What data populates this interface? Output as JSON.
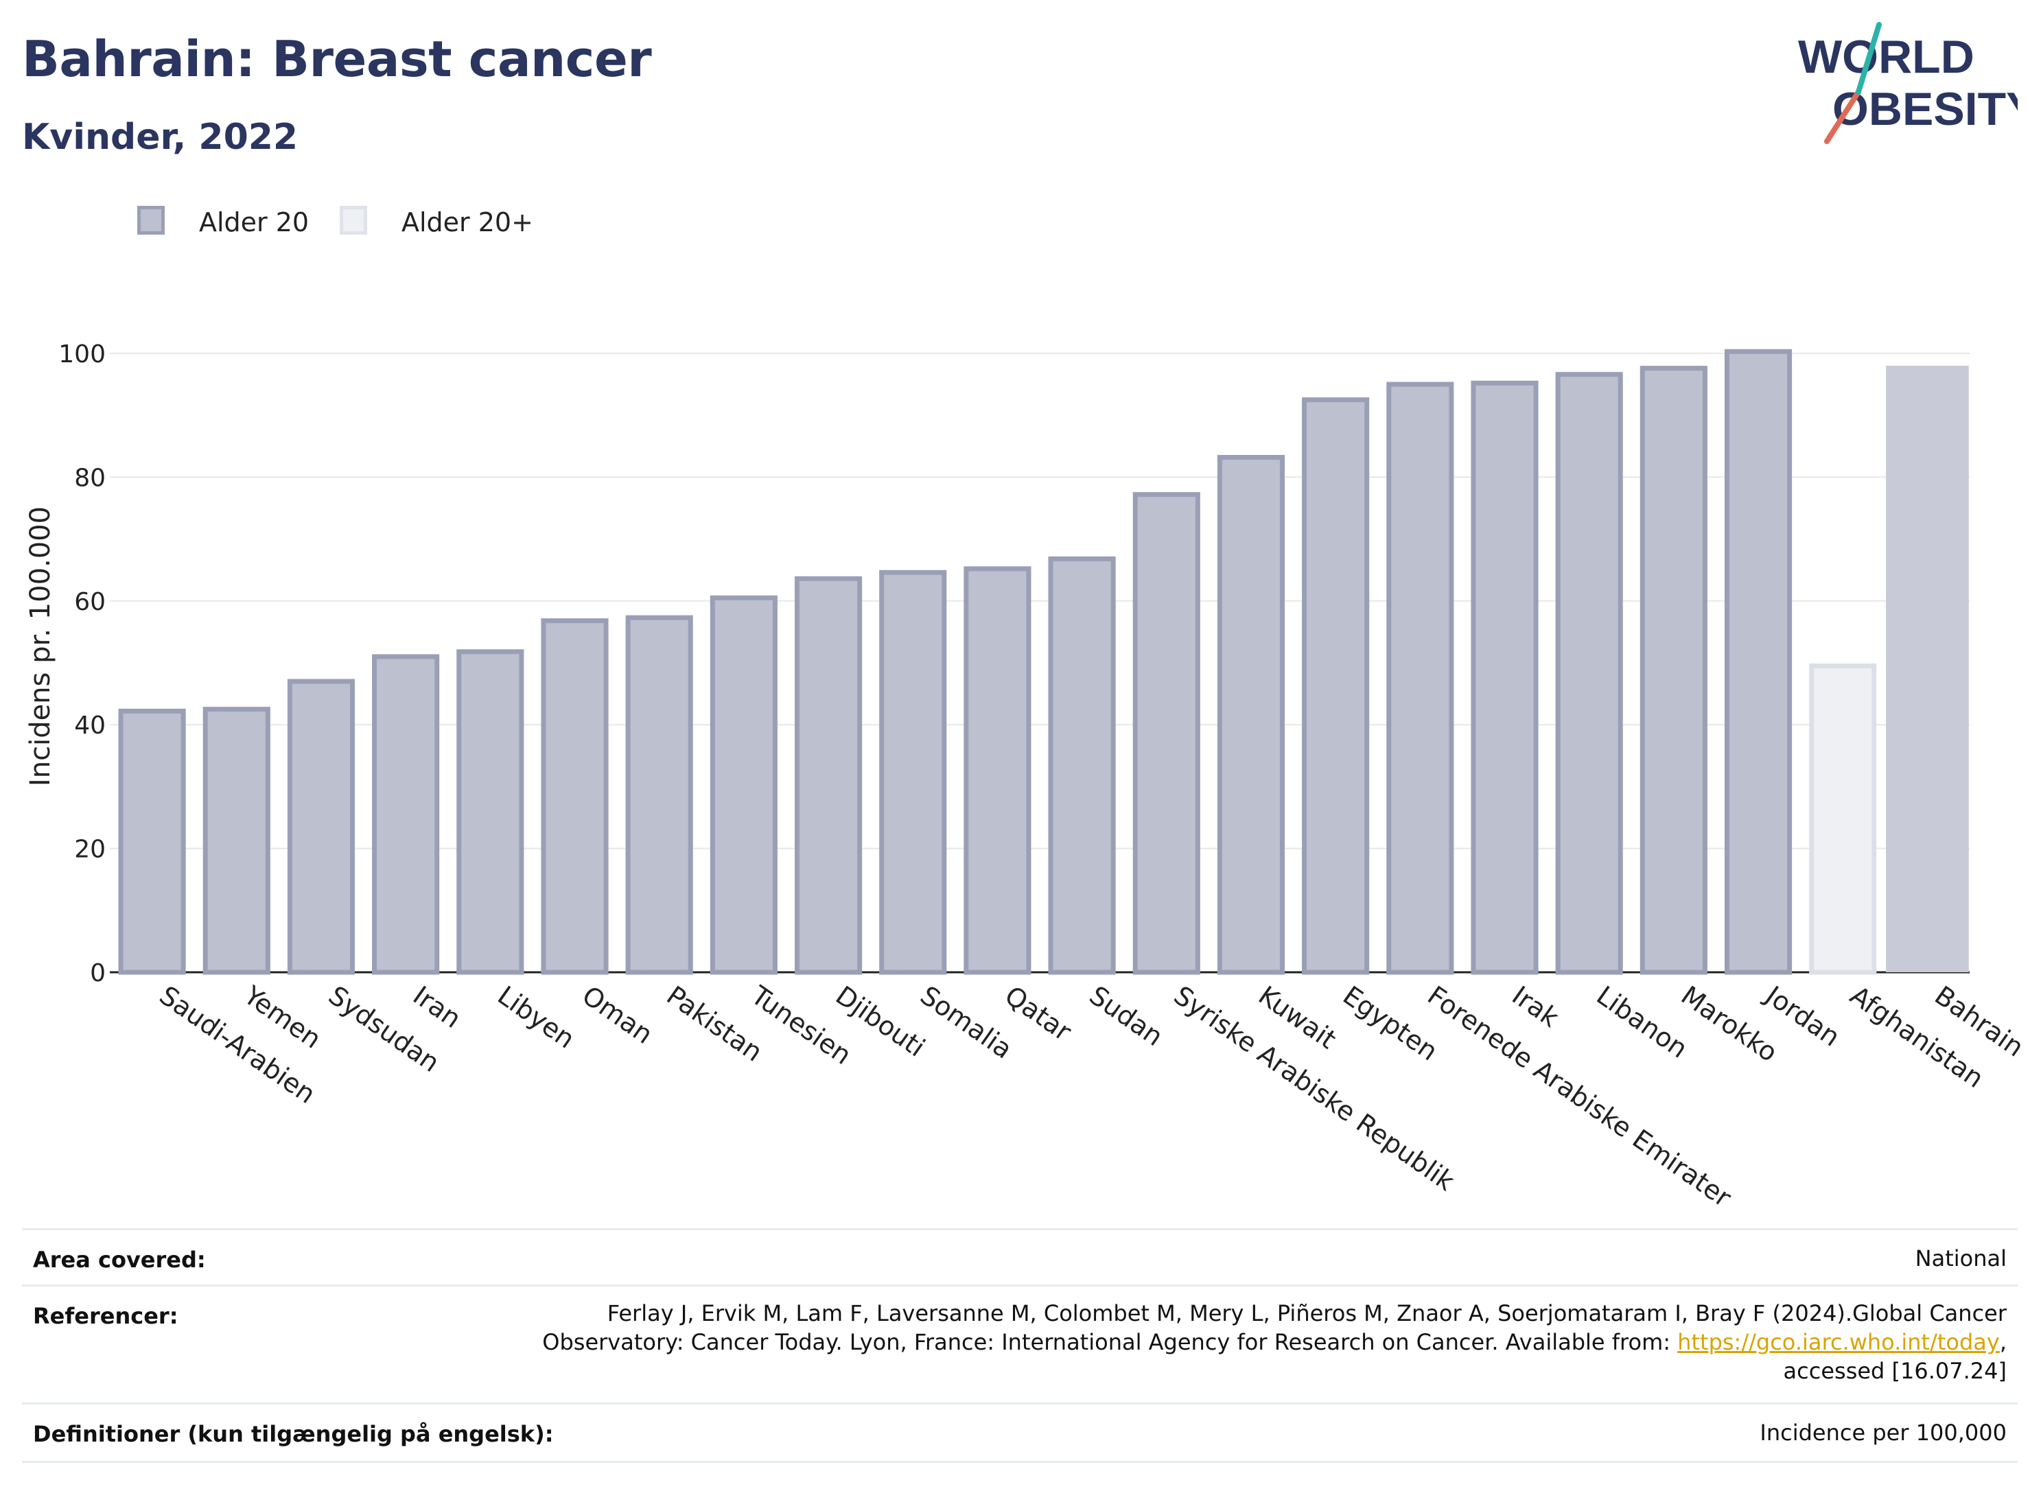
{
  "header": {
    "title": "Bahrain: Breast cancer",
    "subtitle": "Kvinder, 2022"
  },
  "logo": {
    "line1": "WORLD",
    "line2": "OBESITY"
  },
  "legend": [
    {
      "label": "Alder 20",
      "color": "#9a9fb6"
    },
    {
      "label": "Alder 20+",
      "color": "#e6e8ee"
    }
  ],
  "chart_data": {
    "type": "bar",
    "ylabel": "Incidens pr. 100.000",
    "ylim": [
      0,
      100
    ],
    "yticks": [
      0,
      20,
      40,
      60,
      80,
      100
    ],
    "grid": true,
    "legend_position": "top-left",
    "categories": [
      "Saudi-Arabien",
      "Yemen",
      "Sydsudan",
      "Iran",
      "Libyen",
      "Oman",
      "Pakistan",
      "Tunesien",
      "Djibouti",
      "Somalia",
      "Qatar",
      "Sudan",
      "Syriske Arabiske Republik",
      "Kuwait",
      "Egypten",
      "Forenede Arabiske Emirater",
      "Irak",
      "Libanon",
      "Marokko",
      "Jordan",
      "Afghanistan",
      "Bahrain"
    ],
    "values": [
      42.2,
      42.5,
      47.0,
      51.0,
      51.8,
      56.8,
      57.3,
      60.5,
      63.6,
      64.6,
      65.2,
      66.8,
      77.2,
      83.2,
      92.5,
      95.0,
      95.2,
      96.6,
      97.6,
      100.3,
      49.5,
      98.0
    ],
    "series_index": [
      "Alder 20",
      "Alder 20",
      "Alder 20",
      "Alder 20",
      "Alder 20",
      "Alder 20",
      "Alder 20",
      "Alder 20",
      "Alder 20",
      "Alder 20",
      "Alder 20",
      "Alder 20",
      "Alder 20",
      "Alder 20",
      "Alder 20",
      "Alder 20",
      "Alder 20",
      "Alder 20",
      "Alder 20",
      "Alder 20",
      "Alder 20+",
      "highlight"
    ],
    "colors": {
      "Alder 20": "#bcc0cf",
      "Alder 20 border": "#9a9fb6",
      "Alder 20+": "#eef0f4",
      "Alder 20+ border": "#dcdfe7",
      "highlight": "#c8cbd7"
    }
  },
  "meta": {
    "area_key": "Area covered:",
    "area_val": "National",
    "ref_key": "Referencer:",
    "ref_line1": "Ferlay J, Ervik M, Lam F, Laversanne M, Colombet M, Mery L, Piñeros M, Znaor A, Soerjomataram I, Bray F (2024).Global Cancer",
    "ref_line2_pre": "Observatory: Cancer Today. Lyon, France: International Agency for Research on Cancer. Available from: ",
    "ref_link": "https://gco.iarc.who.int/today",
    "ref_line2_post": ",",
    "ref_line3": "accessed [16.07.24]",
    "def_key": "Definitioner (kun tilgængelig på engelsk):",
    "def_val": "Incidence per 100,000"
  }
}
